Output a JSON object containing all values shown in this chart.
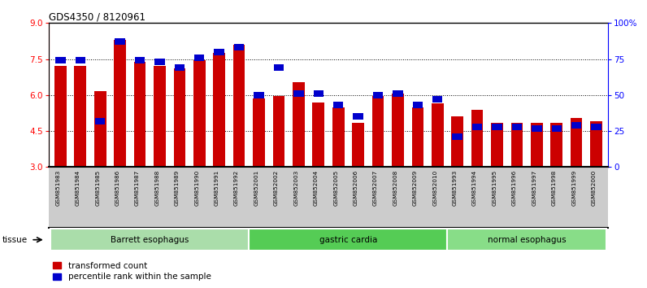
{
  "title": "GDS4350 / 8120961",
  "samples": [
    "GSM851983",
    "GSM851984",
    "GSM851985",
    "GSM851986",
    "GSM851987",
    "GSM851988",
    "GSM851989",
    "GSM851990",
    "GSM851991",
    "GSM851992",
    "GSM852001",
    "GSM852002",
    "GSM852003",
    "GSM852004",
    "GSM852005",
    "GSM852006",
    "GSM852007",
    "GSM852008",
    "GSM852009",
    "GSM852010",
    "GSM851993",
    "GSM851994",
    "GSM851995",
    "GSM851996",
    "GSM851997",
    "GSM851998",
    "GSM851999",
    "GSM852000"
  ],
  "red_values": [
    7.2,
    7.2,
    6.15,
    8.3,
    7.4,
    7.2,
    7.1,
    7.45,
    7.75,
    8.1,
    5.85,
    5.95,
    6.55,
    5.7,
    5.5,
    4.85,
    5.95,
    6.05,
    5.5,
    5.65,
    5.1,
    5.4,
    4.85,
    4.85,
    4.85,
    4.85,
    5.05,
    4.9
  ],
  "blue_values": [
    74,
    74,
    32,
    87,
    74,
    73,
    69,
    76,
    80,
    83,
    50,
    69,
    51,
    51,
    43,
    35,
    50,
    51,
    43,
    47,
    21,
    28,
    28,
    28,
    27,
    27,
    29,
    28
  ],
  "groups": [
    {
      "label": "Barrett esophagus",
      "start": 0,
      "end": 10,
      "color": "#aaddaa"
    },
    {
      "label": "gastric cardia",
      "start": 10,
      "end": 20,
      "color": "#55cc55"
    },
    {
      "label": "normal esophagus",
      "start": 20,
      "end": 28,
      "color": "#88dd88"
    }
  ],
  "ymin": 3,
  "ymax": 9,
  "yticks_left": [
    3,
    4.5,
    6,
    7.5,
    9
  ],
  "yticks_right": [
    0,
    25,
    50,
    75,
    100
  ],
  "bar_color_red": "#cc0000",
  "bar_color_blue": "#0000cc",
  "bg_color": "#ffffff",
  "plot_bg": "#ffffff",
  "xlabel_bg": "#cccccc",
  "legend_red": "transformed count",
  "legend_blue": "percentile rank within the sample"
}
